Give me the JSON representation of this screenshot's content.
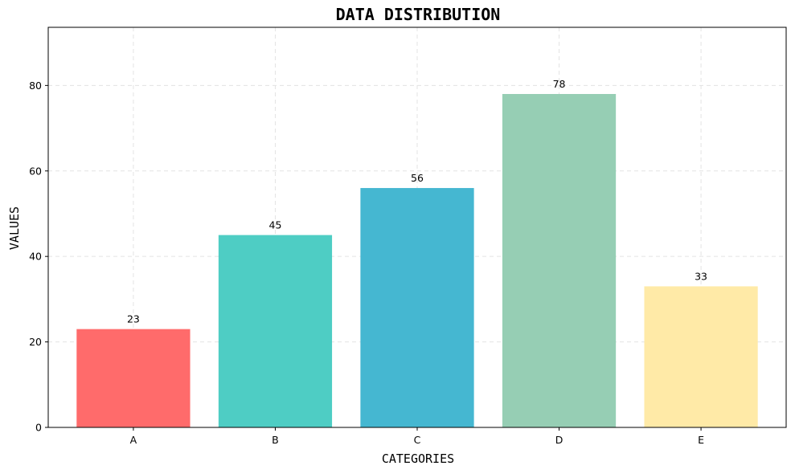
{
  "chart_data": {
    "type": "bar",
    "title": "DATA DISTRIBUTION",
    "xlabel": "CATEGORIES",
    "ylabel": "VALUES",
    "categories": [
      "A",
      "B",
      "C",
      "D",
      "E"
    ],
    "values": [
      23,
      45,
      56,
      78,
      33
    ],
    "colors": [
      "#ff6b6b",
      "#4ecdc4",
      "#45b7d1",
      "#96ceb4",
      "#ffeaa7"
    ],
    "ylim": [
      0,
      93.6
    ],
    "yticks": [
      0,
      20,
      40,
      60,
      80
    ],
    "grid": true,
    "legend": "none"
  }
}
